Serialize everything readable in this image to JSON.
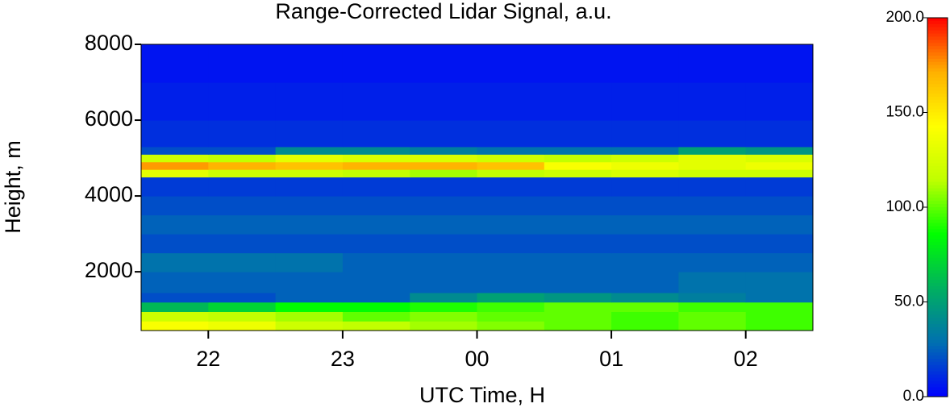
{
  "chart_data": {
    "type": "heatmap",
    "title": "Range-Corrected Lidar Signal, a.u.",
    "x_label": "UTC Time, H",
    "y_label": "Height, m",
    "xlim": [
      21.5,
      26.5
    ],
    "xticks": [
      {
        "value": 22,
        "label": "22"
      },
      {
        "value": 23,
        "label": "23"
      },
      {
        "value": 24,
        "label": "00"
      },
      {
        "value": 25,
        "label": "01"
      },
      {
        "value": 26,
        "label": "02"
      }
    ],
    "ylim": [
      450,
      8000
    ],
    "yticks": [
      2000,
      4000,
      6000,
      8000
    ],
    "x_bins": [
      21.5,
      22,
      22.5,
      23,
      23.5,
      24,
      24.5,
      25,
      25.5,
      26,
      26.5
    ],
    "y_bins": [
      450,
      700,
      950,
      1200,
      1450,
      2000,
      2500,
      3000,
      3500,
      4000,
      4500,
      4700,
      4900,
      5100,
      5300,
      6000,
      7000,
      8000
    ],
    "values": [
      [
        140,
        135,
        120,
        115,
        110,
        105,
        100,
        95,
        100,
        95
      ],
      [
        120,
        115,
        110,
        100,
        105,
        100,
        100,
        95,
        100,
        95
      ],
      [
        60,
        70,
        85,
        85,
        90,
        95,
        100,
        100,
        95,
        95
      ],
      [
        20,
        20,
        25,
        25,
        40,
        50,
        45,
        40,
        35,
        30
      ],
      [
        25,
        25,
        25,
        25,
        25,
        25,
        25,
        25,
        30,
        30
      ],
      [
        30,
        30,
        30,
        25,
        25,
        25,
        25,
        25,
        25,
        25
      ],
      [
        20,
        20,
        20,
        20,
        20,
        20,
        20,
        20,
        20,
        20
      ],
      [
        25,
        25,
        25,
        25,
        25,
        25,
        25,
        25,
        25,
        25
      ],
      [
        20,
        20,
        20,
        20,
        20,
        20,
        20,
        20,
        20,
        20
      ],
      [
        15,
        15,
        15,
        15,
        15,
        15,
        15,
        15,
        15,
        15
      ],
      [
        130,
        120,
        120,
        115,
        110,
        115,
        120,
        125,
        120,
        120
      ],
      [
        175,
        170,
        165,
        170,
        170,
        165,
        140,
        135,
        130,
        135
      ],
      [
        120,
        115,
        130,
        125,
        125,
        120,
        115,
        120,
        130,
        125
      ],
      [
        20,
        20,
        40,
        40,
        35,
        30,
        30,
        30,
        50,
        45
      ],
      [
        12,
        12,
        12,
        12,
        12,
        12,
        12,
        12,
        12,
        12
      ],
      [
        8,
        8,
        8,
        8,
        8,
        8,
        8,
        8,
        8,
        8
      ],
      [
        5,
        5,
        5,
        5,
        5,
        5,
        5,
        5,
        5,
        5
      ]
    ],
    "clim": [
      0,
      200
    ],
    "cticks": [
      {
        "value": 0,
        "label": "0.0"
      },
      {
        "value": 50,
        "label": "50.0"
      },
      {
        "value": 100,
        "label": "100.0"
      },
      {
        "value": 150,
        "label": "150.0"
      },
      {
        "value": 200,
        "label": "200.0"
      }
    ],
    "colorscale": [
      "#0000ff",
      "#0070b0",
      "#00b060",
      "#00ff00",
      "#c0ff00",
      "#ffff00",
      "#ffb000",
      "#ff0000"
    ]
  }
}
